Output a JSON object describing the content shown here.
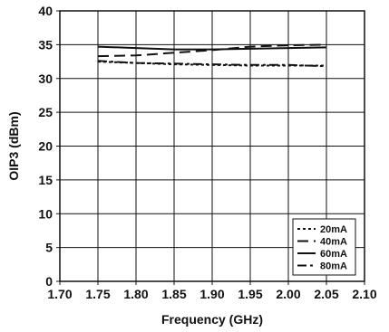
{
  "chart_data": {
    "type": "line",
    "xlabel": "Frequency (GHz)",
    "ylabel": "OIP3 (dBm)",
    "xlim": [
      1.7,
      2.1
    ],
    "ylim": [
      0,
      40
    ],
    "x_ticks": [
      "1.70",
      "1.75",
      "1.80",
      "1.85",
      "1.90",
      "1.95",
      "2.00",
      "2.05",
      "2.10"
    ],
    "y_ticks": [
      "0",
      "5",
      "10",
      "15",
      "20",
      "25",
      "30",
      "35",
      "40"
    ],
    "grid": true,
    "legend_position": "bottom-right",
    "series": [
      {
        "name": "20mA",
        "dash": "dotted",
        "x": [
          1.75,
          1.8,
          1.85,
          1.9,
          1.95,
          2.0,
          2.05
        ],
        "y": [
          32.5,
          32.3,
          32.1,
          32.0,
          31.9,
          31.9,
          31.9
        ]
      },
      {
        "name": "40mA",
        "dash": "dashed",
        "x": [
          1.75,
          1.8,
          1.85,
          1.9,
          1.95,
          2.0,
          2.05
        ],
        "y": [
          33.3,
          33.4,
          33.8,
          34.2,
          34.7,
          34.9,
          35.0
        ]
      },
      {
        "name": "60mA",
        "dash": "solid",
        "x": [
          1.75,
          1.8,
          1.85,
          1.9,
          1.95,
          2.0,
          2.05
        ],
        "y": [
          34.7,
          34.5,
          34.3,
          34.3,
          34.4,
          34.5,
          34.6
        ]
      },
      {
        "name": "80mA",
        "dash": "dashdot",
        "x": [
          1.75,
          1.8,
          1.85,
          1.9,
          1.95,
          2.0,
          2.05
        ],
        "y": [
          32.6,
          32.3,
          32.2,
          32.1,
          32.0,
          32.0,
          31.8
        ]
      }
    ]
  }
}
